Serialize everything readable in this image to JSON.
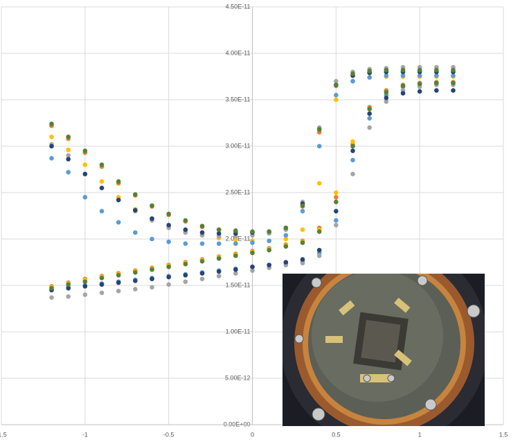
{
  "chart_data": {
    "type": "scatter",
    "x": [
      -1.2,
      -1.1,
      -1,
      -0.9,
      -0.8,
      -0.7,
      -0.6,
      -0.5,
      -0.4,
      -0.3,
      -0.2,
      -0.1,
      0,
      0.1,
      0.2,
      0.3,
      0.4,
      0.5,
      0.6,
      0.7,
      0.8,
      0.9,
      1,
      1.1,
      1.2,
      -1.2,
      -1.1,
      -1,
      -0.9,
      -0.8,
      -0.7,
      -0.6,
      -0.5,
      -0.4,
      -0.3,
      -0.2,
      -0.1,
      0,
      0.1,
      0.2,
      0.3,
      0.4,
      0.5,
      0.6,
      0.7,
      0.8,
      0.9,
      1,
      1.1,
      1.2
    ],
    "series": [
      {
        "color": "#ed7d31",
        "values": [
          3.22e-11,
          3.08e-11,
          2.93e-11,
          2.78e-11,
          2.6e-11,
          2.47e-11,
          2.35e-11,
          2.26e-11,
          2.19e-11,
          2.13e-11,
          2.1e-11,
          2.08e-11,
          2.07e-11,
          2.07e-11,
          2.11e-11,
          2.35e-11,
          3.15e-11,
          3.65e-11,
          3.76e-11,
          3.79e-11,
          3.8e-11,
          3.8e-11,
          3.8e-11,
          3.8e-11,
          3.8e-11,
          1.49e-11,
          1.53e-11,
          1.57e-11,
          1.6e-11,
          1.63e-11,
          1.66e-11,
          1.69e-11,
          1.72e-11,
          1.75e-11,
          1.78e-11,
          1.81e-11,
          1.84e-11,
          1.87e-11,
          1.9e-11,
          1.94e-11,
          1.98e-11,
          2.12e-11,
          2.45e-11,
          3.02e-11,
          3.42e-11,
          3.6e-11,
          3.66e-11,
          3.68e-11,
          3.69e-11,
          3.69e-11
        ]
      },
      {
        "color": "#ffc000",
        "values": [
          3.1e-11,
          2.96e-11,
          2.8e-11,
          2.62e-11,
          2.45e-11,
          2.32e-11,
          2.22e-11,
          2.14e-11,
          2.08e-11,
          2.04e-11,
          2.01e-11,
          1.99e-11,
          1.98e-11,
          1.98e-11,
          2e-11,
          2.1e-11,
          2.6e-11,
          3.5e-11,
          3.7e-11,
          3.74e-11,
          3.75e-11,
          3.75e-11,
          3.75e-11,
          3.75e-11,
          3.75e-11,
          1.48e-11,
          1.52e-11,
          1.56e-11,
          1.59e-11,
          1.62e-11,
          1.65e-11,
          1.68e-11,
          1.71e-11,
          1.74e-11,
          1.77e-11,
          1.8e-11,
          1.83e-11,
          1.86e-11,
          1.89e-11,
          1.93e-11,
          1.97e-11,
          2.1e-11,
          2.5e-11,
          3.05e-11,
          3.4e-11,
          3.58e-11,
          3.64e-11,
          3.67e-11,
          3.68e-11,
          3.68e-11
        ]
      },
      {
        "color": "#5b9bd5",
        "values": [
          2.87e-11,
          2.72e-11,
          2.45e-11,
          2.3e-11,
          2.18e-11,
          2.07e-11,
          2e-11,
          1.97e-11,
          1.95e-11,
          1.95e-11,
          1.95e-11,
          1.95e-11,
          1.96e-11,
          1.98e-11,
          2.04e-11,
          2.3e-11,
          3e-11,
          3.55e-11,
          3.7e-11,
          3.74e-11,
          3.76e-11,
          3.76e-11,
          3.76e-11,
          3.76e-11,
          3.76e-11,
          1.45e-11,
          1.48e-11,
          1.5e-11,
          1.52e-11,
          1.54e-11,
          1.56e-11,
          1.58e-11,
          1.6e-11,
          1.62e-11,
          1.64e-11,
          1.66e-11,
          1.68e-11,
          1.7e-11,
          1.72e-11,
          1.74e-11,
          1.76e-11,
          1.85e-11,
          2.2e-11,
          2.85e-11,
          3.3e-11,
          3.55e-11,
          3.64e-11,
          3.67e-11,
          3.68e-11,
          3.68e-11
        ]
      },
      {
        "color": "#a5a5a5",
        "values": [
          3.02e-11,
          2.9e-11,
          2.7e-11,
          2.55e-11,
          2.42e-11,
          2.3e-11,
          2.2e-11,
          2.12e-11,
          2.07e-11,
          2.04e-11,
          2.03e-11,
          2.03e-11,
          2.04e-11,
          2.06e-11,
          2.1e-11,
          2.4e-11,
          3.2e-11,
          3.7e-11,
          3.8e-11,
          3.83e-11,
          3.84e-11,
          3.85e-11,
          3.85e-11,
          3.85e-11,
          3.85e-11,
          1.37e-11,
          1.38e-11,
          1.4e-11,
          1.42e-11,
          1.44e-11,
          1.46e-11,
          1.48e-11,
          1.51e-11,
          1.54e-11,
          1.57e-11,
          1.6e-11,
          1.63e-11,
          1.66e-11,
          1.69e-11,
          1.72e-11,
          1.74e-11,
          1.82e-11,
          2.15e-11,
          2.7e-11,
          3.2e-11,
          3.48e-11,
          3.6e-11,
          3.64e-11,
          3.66e-11,
          3.66e-11
        ]
      },
      {
        "color": "#264478",
        "values": [
          3e-11,
          2.86e-11,
          2.7e-11,
          2.55e-11,
          2.42e-11,
          2.31e-11,
          2.22e-11,
          2.15e-11,
          2.1e-11,
          2.07e-11,
          2.06e-11,
          2.06e-11,
          2.07e-11,
          2.08e-11,
          2.12e-11,
          2.38e-11,
          3.18e-11,
          3.66e-11,
          3.76e-11,
          3.79e-11,
          3.8e-11,
          3.8e-11,
          3.8e-11,
          3.8e-11,
          3.8e-11,
          1.45e-11,
          1.47e-11,
          1.49e-11,
          1.51e-11,
          1.53e-11,
          1.55e-11,
          1.57e-11,
          1.59e-11,
          1.61e-11,
          1.63e-11,
          1.65e-11,
          1.67e-11,
          1.7e-11,
          1.72e-11,
          1.75e-11,
          1.78e-11,
          1.88e-11,
          2.3e-11,
          2.95e-11,
          3.35e-11,
          3.52e-11,
          3.57e-11,
          3.59e-11,
          3.6e-11,
          3.6e-11
        ]
      },
      {
        "color": "#548235",
        "values": [
          3.24e-11,
          3.1e-11,
          2.95e-11,
          2.8e-11,
          2.62e-11,
          2.48e-11,
          2.36e-11,
          2.27e-11,
          2.2e-11,
          2.14e-11,
          2.1e-11,
          2.09e-11,
          2.08e-11,
          2.08e-11,
          2.12e-11,
          2.36e-11,
          3.18e-11,
          3.66e-11,
          3.78e-11,
          3.81e-11,
          3.82e-11,
          3.82e-11,
          3.82e-11,
          3.82e-11,
          3.82e-11,
          1.47e-11,
          1.51e-11,
          1.54e-11,
          1.58e-11,
          1.61e-11,
          1.64e-11,
          1.67e-11,
          1.7e-11,
          1.73e-11,
          1.76e-11,
          1.79e-11,
          1.82e-11,
          1.85e-11,
          1.88e-11,
          1.92e-11,
          1.96e-11,
          2.08e-11,
          2.4e-11,
          3e-11,
          3.4e-11,
          3.58e-11,
          3.65e-11,
          3.67e-11,
          3.68e-11,
          3.68e-11
        ]
      }
    ],
    "xlim": [
      -1.5,
      1.5
    ],
    "xticks": [
      -1.5,
      -1,
      -0.5,
      0,
      0.5,
      1,
      1.5
    ],
    "ylim": [
      0,
      4.5e-11
    ],
    "yticks": [
      {
        "value": 0,
        "label": "0.00E+00"
      },
      {
        "value": 5e-12,
        "label": "5.00E-12"
      },
      {
        "value": 1e-11,
        "label": "1.00E-11"
      },
      {
        "value": 1.5e-11,
        "label": "1.50E-11"
      },
      {
        "value": 2e-11,
        "label": "2.00E-11"
      },
      {
        "value": 2.5e-11,
        "label": "2.50E-11"
      },
      {
        "value": 3e-11,
        "label": "3.00E-11"
      },
      {
        "value": 3.5e-11,
        "label": "3.50E-11"
      },
      {
        "value": 4e-11,
        "label": "4.00E-11"
      },
      {
        "value": 4.5e-11,
        "label": "4.50E-11"
      }
    ],
    "grid": true
  }
}
